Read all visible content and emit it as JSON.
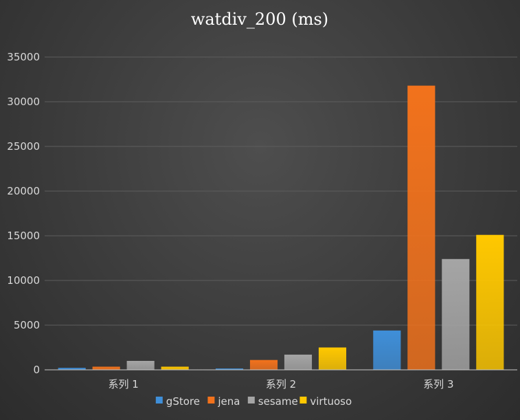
{
  "chart_data": {
    "type": "bar",
    "title": "watdiv_200 (ms)",
    "xlabel": "",
    "ylabel": "",
    "categories": [
      "系列 1",
      "系列 2",
      "系列 3"
    ],
    "series": [
      {
        "name": "gStore",
        "values": [
          220,
          150,
          4400
        ],
        "color": "#3f8fd9"
      },
      {
        "name": "jena",
        "values": [
          350,
          1100,
          31800
        ],
        "color": "#f2721c"
      },
      {
        "name": "sesame",
        "values": [
          1000,
          1700,
          12400
        ],
        "color": "#a5a5a5"
      },
      {
        "name": "virtuoso",
        "values": [
          350,
          2500,
          15100
        ],
        "color": "#ffc800"
      }
    ],
    "ylim": [
      0,
      35000
    ],
    "yticks": [
      0,
      5000,
      10000,
      15000,
      20000,
      25000,
      30000,
      35000
    ],
    "grid": true,
    "legend_position": "bottom"
  }
}
